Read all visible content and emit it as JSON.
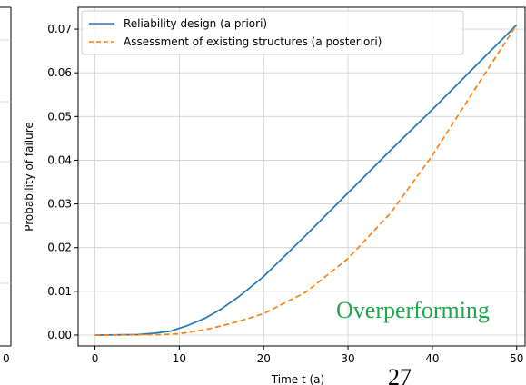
{
  "chart_data": {
    "type": "line",
    "xlabel": "Time t (a)",
    "ylabel": "Probability of failure",
    "xlim": [
      -2,
      51
    ],
    "ylim": [
      -0.0025,
      0.075
    ],
    "xticks": [
      "0",
      "10",
      "20",
      "30",
      "40",
      "50"
    ],
    "yticks": [
      "0.00",
      "0.01",
      "0.02",
      "0.03",
      "0.04",
      "0.05",
      "0.06",
      "0.07"
    ],
    "grid": true,
    "legend_position": "top-left",
    "series": [
      {
        "name": "Reliability design (a priori)",
        "color": "#1f77b4",
        "style": "solid",
        "x": [
          0,
          5,
          7,
          9,
          11,
          13,
          15,
          17,
          20,
          25,
          30,
          35,
          40,
          45,
          50
        ],
        "y": [
          0.0,
          0.0001,
          0.0004,
          0.0009,
          0.0022,
          0.0038,
          0.006,
          0.0087,
          0.0134,
          0.0228,
          0.0325,
          0.0422,
          0.0516,
          0.0613,
          0.071
        ]
      },
      {
        "name": "Assessment of existing structures (a posteriori)",
        "color": "#ff7f0e",
        "style": "dashed",
        "x": [
          0,
          8,
          10,
          13,
          15,
          17,
          20,
          25,
          30,
          35,
          40,
          45,
          50
        ],
        "y": [
          0.0,
          0.0001,
          0.0003,
          0.0012,
          0.0021,
          0.0031,
          0.0049,
          0.0098,
          0.0175,
          0.0278,
          0.0411,
          0.0561,
          0.071
        ]
      }
    ]
  },
  "annotations": {
    "overperforming": "Overperforming",
    "overperforming_color": "#1fa84a",
    "page_number": "27"
  }
}
